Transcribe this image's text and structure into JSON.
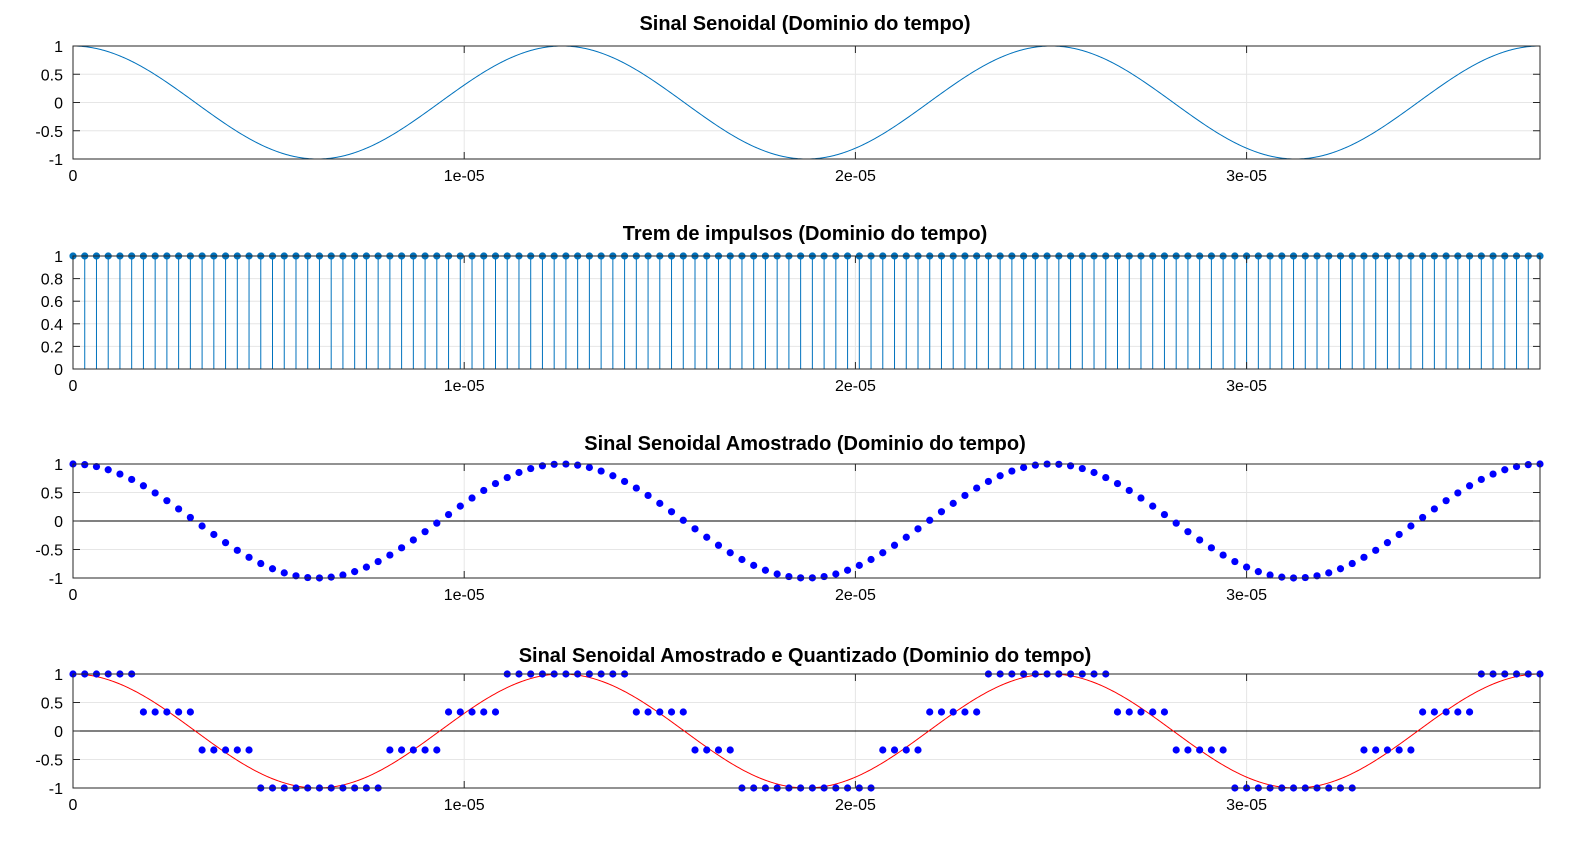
{
  "chart_data": [
    {
      "type": "line",
      "title": "Sinal Senoidal (Dominio do tempo)",
      "xlabel": "",
      "ylabel": "",
      "function": "cos(2*pi*f*t)",
      "frequency_hz": 80000,
      "xlim": [
        0,
        3.75e-05
      ],
      "ylim": [
        -1,
        1
      ],
      "xticks": [
        0,
        1e-05,
        2e-05,
        3e-05
      ],
      "xtick_labels": [
        "0",
        "1e-05",
        "2e-05",
        "3e-05"
      ],
      "yticks": [
        -1,
        -0.5,
        0,
        0.5,
        1
      ],
      "ytick_labels": [
        "-1",
        "-0.5",
        "0",
        "0.5",
        "1"
      ],
      "grid": true,
      "colors": {
        "line": "#0072bd"
      }
    },
    {
      "type": "stem",
      "title": "Trem de impulsos (Dominio do tempo)",
      "xlabel": "",
      "ylabel": "",
      "sampling_interval_s": 3e-07,
      "num_samples": 126,
      "value": 1,
      "xlim": [
        0,
        3.75e-05
      ],
      "ylim": [
        0,
        1
      ],
      "xticks": [
        0,
        1e-05,
        2e-05,
        3e-05
      ],
      "xtick_labels": [
        "0",
        "1e-05",
        "2e-05",
        "3e-05"
      ],
      "yticks": [
        0,
        0.2,
        0.4,
        0.6,
        0.8,
        1
      ],
      "ytick_labels": [
        "0",
        "0.2",
        "0.4",
        "0.6",
        "0.8",
        "1"
      ],
      "grid": true,
      "colors": {
        "stem": "#0072bd",
        "marker": "#0072bd"
      }
    },
    {
      "type": "scatter",
      "title": "Sinal Senoidal Amostrado (Dominio do tempo)",
      "xlabel": "",
      "ylabel": "",
      "function": "cos(2*pi*f*n*Ts)",
      "frequency_hz": 80000,
      "sampling_interval_s": 3e-07,
      "num_samples": 126,
      "xlim": [
        0,
        3.75e-05
      ],
      "ylim": [
        -1,
        1
      ],
      "xticks": [
        0,
        1e-05,
        2e-05,
        3e-05
      ],
      "xtick_labels": [
        "0",
        "1e-05",
        "2e-05",
        "3e-05"
      ],
      "yticks": [
        -1,
        -0.5,
        0,
        0.5,
        1
      ],
      "ytick_labels": [
        "-1",
        "-0.5",
        "0",
        "0.5",
        "1"
      ],
      "zero_line": true,
      "grid": true,
      "colors": {
        "marker": "#0000ff",
        "zero_line": "#000000"
      }
    },
    {
      "type": "scatter",
      "title": "Sinal Senoidal Amostrado e Quantizado (Dominio do tempo)",
      "xlabel": "",
      "ylabel": "",
      "function": "cos(2*pi*f*n*Ts)",
      "frequency_hz": 80000,
      "sampling_interval_s": 3e-07,
      "num_samples": 126,
      "quantization_levels": [
        -1,
        -0.3333,
        0.3333,
        1
      ],
      "overlay_function": "cos(2*pi*f*t)",
      "xlim": [
        0,
        3.75e-05
      ],
      "ylim": [
        -1,
        1
      ],
      "xticks": [
        0,
        1e-05,
        2e-05,
        3e-05
      ],
      "xtick_labels": [
        "0",
        "1e-05",
        "2e-05",
        "3e-05"
      ],
      "yticks": [
        -1,
        -0.5,
        0,
        0.5,
        1
      ],
      "ytick_labels": [
        "-1",
        "-0.5",
        "0",
        "0.5",
        "1"
      ],
      "zero_line": true,
      "grid": true,
      "colors": {
        "marker": "#0000ff",
        "overlay": "#ff0000",
        "zero_line": "#000000"
      }
    }
  ]
}
